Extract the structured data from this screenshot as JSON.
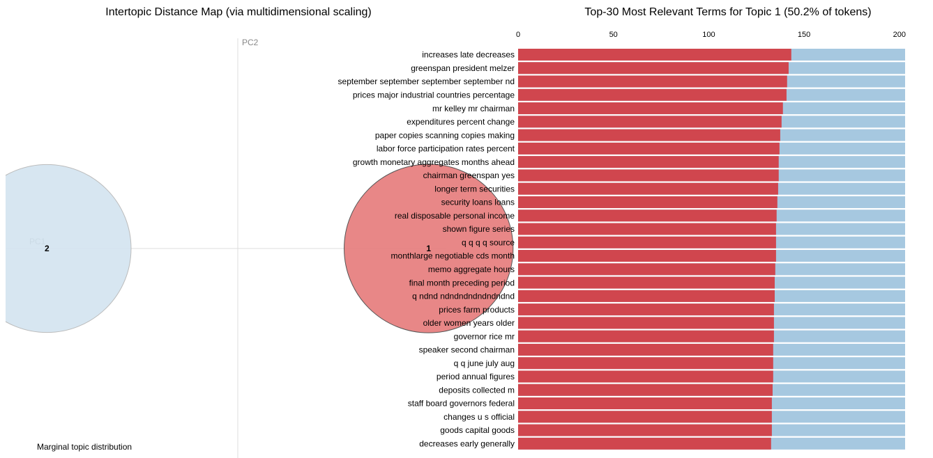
{
  "chart_data": [
    {
      "type": "scatter",
      "title": "Intertopic Distance Map (via multidimensional scaling)",
      "xlabel": "PC1",
      "ylabel": "PC2",
      "labels": [
        "1",
        "2"
      ],
      "x": [
        0.17,
        -0.17
      ],
      "y": [
        0,
        0
      ],
      "sizes": [
        50.2,
        49.8
      ],
      "colors": [
        "#e57a7a",
        "#d3e3ef"
      ],
      "xlim": [
        -0.2,
        0.2
      ],
      "ylim": [
        -0.2,
        0.2
      ],
      "annotation": "Marginal topic distribution"
    },
    {
      "type": "bar",
      "title": "Top-30 Most Relevant Terms for Topic 1 (50.2% of tokens)",
      "categories": [
        "increases late decreases",
        "greenspan president melzer",
        "september september september september nd",
        "prices major industrial countries percentage",
        "mr kelley mr chairman",
        "expenditures percent change",
        "paper copies scanning copies making",
        "labor force participation rates percent",
        "growth monetary aggregates months ahead",
        "chairman greenspan yes",
        "longer term securities",
        "security loans loans",
        "real disposable personal income",
        "shown figure series",
        "q q q q source",
        "monthlarge negotiable cds month",
        "memo aggregate hours",
        "final month preceding period",
        "q ndnd ndndndndndndndnd",
        "prices farm products",
        "older women years older",
        "governor rice mr",
        "speaker second chairman",
        "q q june july aug",
        "period annual figures",
        "deposits collected m",
        "staff board governors federal",
        "changes u s official",
        "goods capital goods",
        "decreases early generally"
      ],
      "series": [
        {
          "color": "#a6c8e0",
          "values": [
            203,
            203,
            203,
            203,
            203,
            203,
            203,
            203,
            203,
            203,
            203,
            203,
            203,
            203,
            203,
            203,
            203,
            203,
            203,
            203,
            203,
            203,
            203,
            203,
            203,
            203,
            203,
            203,
            203,
            203
          ]
        },
        {
          "color": "#d0464e",
          "values": [
            143.3,
            141.9,
            141.1,
            140.8,
            138.9,
            138.2,
            137.5,
            137.1,
            136.7,
            136.7,
            136.4,
            136.0,
            135.6,
            135.3,
            135.3,
            135.3,
            134.9,
            134.6,
            134.6,
            134.2,
            134.2,
            134.2,
            133.8,
            133.8,
            133.8,
            133.5,
            133.1,
            133.1,
            133.1,
            132.7
          ]
        }
      ],
      "xlim": [
        0,
        203
      ],
      "xticks": [
        0,
        50,
        100,
        150,
        200
      ]
    }
  ]
}
